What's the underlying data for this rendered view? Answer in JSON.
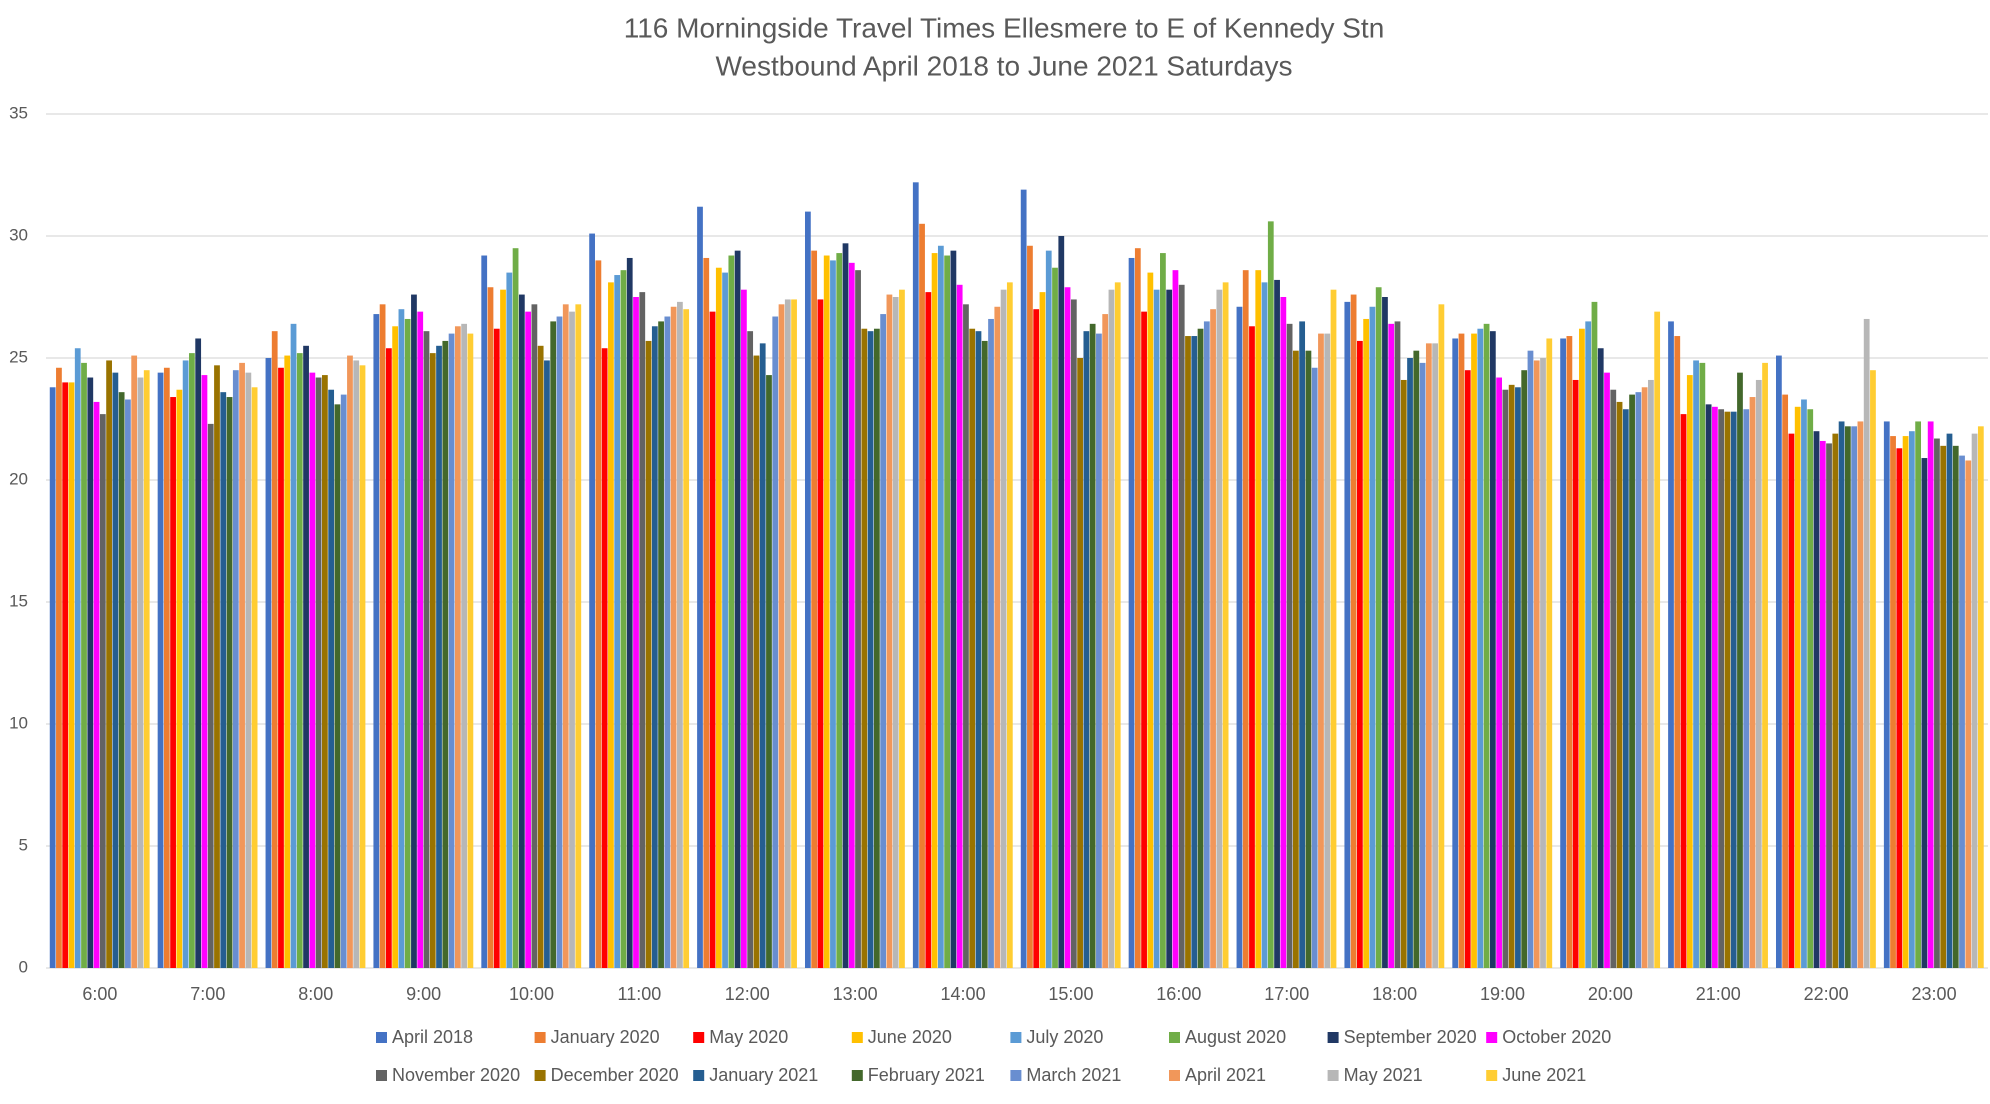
{
  "chart_data": {
    "type": "bar",
    "title": "116 Morningside Travel Times Ellesmere to E of Kennedy Stn",
    "subtitle": "Westbound April 2018 to June 2021 Saturdays",
    "categories": [
      "6:00",
      "7:00",
      "8:00",
      "9:00",
      "10:00",
      "11:00",
      "12:00",
      "13:00",
      "14:00",
      "15:00",
      "16:00",
      "17:00",
      "18:00",
      "19:00",
      "20:00",
      "21:00",
      "22:00",
      "23:00"
    ],
    "ylim": [
      0,
      35
    ],
    "yticks": [
      0,
      5,
      10,
      15,
      20,
      25,
      30,
      35
    ],
    "grid": true,
    "series": [
      {
        "name": "April 2018",
        "color": "#4472c4",
        "values": [
          23.8,
          24.4,
          25.0,
          26.8,
          29.2,
          30.1,
          31.2,
          31.0,
          32.2,
          31.9,
          29.1,
          27.1,
          27.3,
          25.8,
          25.8,
          26.5,
          25.1,
          22.4
        ]
      },
      {
        "name": "January 2020",
        "color": "#ed7d31",
        "values": [
          24.6,
          24.6,
          26.1,
          27.2,
          27.9,
          29.0,
          29.1,
          29.4,
          30.5,
          29.6,
          29.5,
          28.6,
          27.6,
          26.0,
          25.9,
          25.9,
          23.5,
          21.8
        ]
      },
      {
        "name": "May 2020",
        "color": "#ff0000",
        "values": [
          24.0,
          23.4,
          24.6,
          25.4,
          26.2,
          25.4,
          26.9,
          27.4,
          27.7,
          27.0,
          26.9,
          26.3,
          25.7,
          24.5,
          24.1,
          22.7,
          21.9,
          21.3
        ]
      },
      {
        "name": "June 2020",
        "color": "#ffc000",
        "values": [
          24.0,
          23.7,
          25.1,
          26.3,
          27.8,
          28.1,
          28.7,
          29.2,
          29.3,
          27.7,
          28.5,
          28.6,
          26.6,
          26.0,
          26.2,
          24.3,
          23.0,
          21.8
        ]
      },
      {
        "name": "July 2020",
        "color": "#5b9bd5",
        "values": [
          25.4,
          24.9,
          26.4,
          27.0,
          28.5,
          28.4,
          28.5,
          29.0,
          29.6,
          29.4,
          27.8,
          28.1,
          27.1,
          26.2,
          26.5,
          24.9,
          23.3,
          22.0
        ]
      },
      {
        "name": "August 2020",
        "color": "#70ad47",
        "values": [
          24.8,
          25.2,
          25.2,
          26.6,
          29.5,
          28.6,
          29.2,
          29.3,
          29.2,
          28.7,
          29.3,
          30.6,
          27.9,
          26.4,
          27.3,
          24.8,
          22.9,
          22.4
        ]
      },
      {
        "name": "September 2020",
        "color": "#203864",
        "values": [
          24.2,
          25.8,
          25.5,
          27.6,
          27.6,
          29.1,
          29.4,
          29.7,
          29.4,
          30.0,
          27.8,
          28.2,
          27.5,
          26.1,
          25.4,
          23.1,
          22.0,
          20.9
        ]
      },
      {
        "name": "October 2020",
        "color": "#ff00ff",
        "values": [
          23.2,
          24.3,
          24.4,
          26.9,
          26.9,
          27.5,
          27.8,
          28.9,
          28.0,
          27.9,
          28.6,
          27.5,
          26.4,
          24.2,
          24.4,
          23.0,
          21.6,
          22.4
        ]
      },
      {
        "name": "November 2020",
        "color": "#636363",
        "values": [
          22.7,
          22.3,
          24.2,
          26.1,
          27.2,
          27.7,
          26.1,
          28.6,
          27.2,
          27.4,
          28.0,
          26.4,
          26.5,
          23.7,
          23.7,
          22.9,
          21.5,
          21.7
        ]
      },
      {
        "name": "December 2020",
        "color": "#997300",
        "values": [
          24.9,
          24.7,
          24.3,
          25.2,
          25.5,
          25.7,
          25.1,
          26.2,
          26.2,
          25.0,
          25.9,
          25.3,
          24.1,
          23.9,
          23.2,
          22.8,
          21.9,
          21.4
        ]
      },
      {
        "name": "January 2021",
        "color": "#255e91",
        "values": [
          24.4,
          23.6,
          23.7,
          25.5,
          24.9,
          26.3,
          25.6,
          26.1,
          26.1,
          26.1,
          25.9,
          26.5,
          25.0,
          23.8,
          22.9,
          22.8,
          22.4,
          21.9
        ]
      },
      {
        "name": "February 2021",
        "color": "#43682b",
        "values": [
          23.6,
          23.4,
          23.1,
          25.7,
          26.5,
          26.5,
          24.3,
          26.2,
          25.7,
          26.4,
          26.2,
          25.3,
          25.3,
          24.5,
          23.5,
          24.4,
          22.2,
          21.4
        ]
      },
      {
        "name": "March 2021",
        "color": "#698ed0",
        "values": [
          23.3,
          24.5,
          23.5,
          26.0,
          26.7,
          26.7,
          26.7,
          26.8,
          26.6,
          26.0,
          26.5,
          24.6,
          24.8,
          25.3,
          23.6,
          22.9,
          22.2,
          21.0
        ]
      },
      {
        "name": "April 2021",
        "color": "#f1975a",
        "values": [
          25.1,
          24.8,
          25.1,
          26.3,
          27.2,
          27.1,
          27.2,
          27.6,
          27.1,
          26.8,
          27.0,
          26.0,
          25.6,
          24.9,
          23.8,
          23.4,
          22.4,
          20.8
        ]
      },
      {
        "name": "May 2021",
        "color": "#b7b7b7",
        "values": [
          24.2,
          24.4,
          24.9,
          26.4,
          26.9,
          27.3,
          27.4,
          27.5,
          27.8,
          27.8,
          27.8,
          26.0,
          25.6,
          25.0,
          24.1,
          24.1,
          26.6,
          21.9
        ]
      },
      {
        "name": "June 2021",
        "color": "#ffcd33",
        "values": [
          24.5,
          23.8,
          24.7,
          26.0,
          27.2,
          27.0,
          27.4,
          27.8,
          28.1,
          28.1,
          28.1,
          27.8,
          27.2,
          25.8,
          26.9,
          24.8,
          24.5,
          22.2
        ]
      }
    ]
  }
}
